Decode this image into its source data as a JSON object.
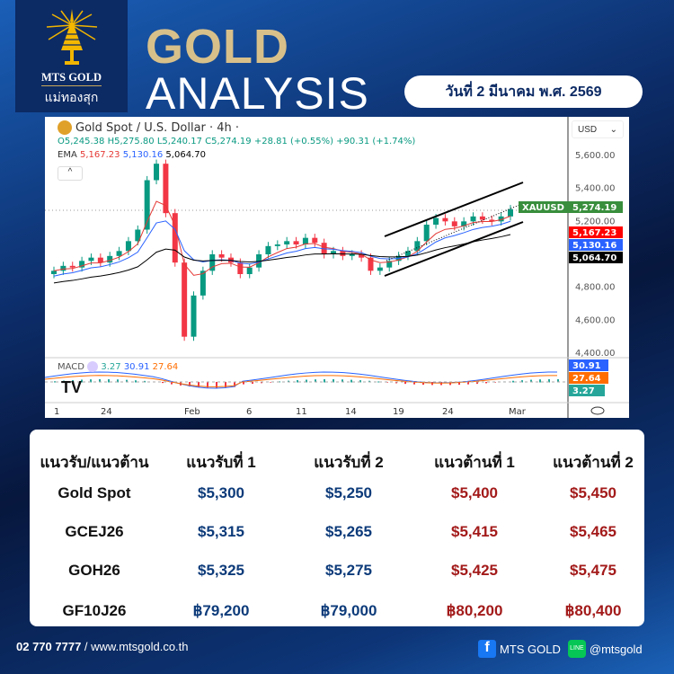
{
  "brand": {
    "logo_en": "MTS GOLD",
    "logo_th": "แม่ทองสุก"
  },
  "title": {
    "line1": "GOLD",
    "line2": "ANALYSIS"
  },
  "date": "วันที่ 2 มีนาคม พ.ศ. 2569",
  "chart_data": {
    "type": "candlestick",
    "title": "Gold Spot / U.S. Dollar · 4h ·",
    "ohlc": {
      "open": "O5,245.38",
      "high": "H5,275.80",
      "low": "L5,240.17",
      "close": "C5,274.19",
      "change": "+28.81 (+0.55%)",
      "change2": "+90.31 (+1.74%)"
    },
    "ema": {
      "label": "EMA",
      "values": [
        "5,167.23",
        "5,130.16",
        "5,064.70"
      ],
      "colors": [
        "#e53935",
        "#2962ff",
        "#000000"
      ]
    },
    "currency": "USD",
    "symbol": "XAUUSD",
    "last_price": "5,274.19",
    "yticks": [
      "5,600.00",
      "5,400.00",
      "5,200.00",
      "4,800.00",
      "4,600.00",
      "4,400.00"
    ],
    "ylim": [
      4400,
      5600
    ],
    "xticks": [
      "1",
      "24",
      "Feb",
      "6",
      "11",
      "14",
      "19",
      "24",
      "Mar"
    ],
    "closes": [
      4900,
      4930,
      4920,
      4960,
      4980,
      4950,
      4990,
      5020,
      5080,
      5150,
      5450,
      5550,
      5250,
      4950,
      4500,
      4750,
      4900,
      5000,
      4980,
      4950,
      4880,
      4920,
      5000,
      5050,
      5060,
      5080,
      5060,
      5100,
      5070,
      5000,
      5020,
      4990,
      5000,
      4980,
      4900,
      4920,
      4960,
      4990,
      5020,
      5080,
      5180,
      5220,
      5200,
      5170,
      5200,
      5230,
      5210,
      5200,
      5230,
      5274
    ],
    "macd": {
      "label": "MACD",
      "values": [
        "3.27",
        "30.91",
        "27.64"
      ],
      "colors": [
        "#26a69a",
        "#2962ff",
        "#ff6d00"
      ],
      "hidden_label": "30.91"
    },
    "up_color": "#089981",
    "down_color": "#f23645"
  },
  "table": {
    "headers": [
      "แนวรับ/แนวต้าน",
      "แนวรับที่ 1",
      "แนวรับที่ 2",
      "แนวต้านที่ 1",
      "แนวต้านที่ 2"
    ],
    "rows": [
      [
        "Gold Spot",
        "$5,300",
        "$5,250",
        "$5,400",
        "$5,450"
      ],
      [
        "GCEJ26",
        "$5,315",
        "$5,265",
        "$5,415",
        "$5,465"
      ],
      [
        "GOH26",
        "$5,325",
        "$5,275",
        "$5,425",
        "$5,475"
      ],
      [
        "GF10J26",
        "฿79,200",
        "฿79,000",
        "฿80,200",
        "฿80,400"
      ]
    ],
    "support_color": "#0d3b7a",
    "resistance_color": "#a31a1a"
  },
  "footer": {
    "phone": "02 770 7777",
    "website": " / www.mtsgold.co.th",
    "facebook": "MTS GOLD",
    "line": "@mtsgold"
  }
}
